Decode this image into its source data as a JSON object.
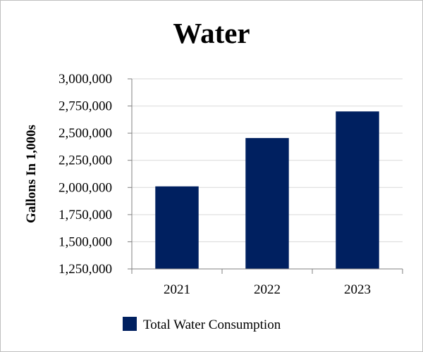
{
  "chart_data": {
    "type": "bar",
    "title": "Water",
    "xlabel": "",
    "ylabel": "Gallons In 1,000s",
    "categories": [
      "2021",
      "2022",
      "2023"
    ],
    "series": [
      {
        "name": "Total Water Consumption",
        "values": [
          2010000,
          2455000,
          2700000
        ]
      }
    ],
    "ylim": [
      1250000,
      3000000
    ],
    "yticks": [
      1250000,
      1500000,
      1750000,
      2000000,
      2250000,
      2500000,
      2750000,
      3000000
    ],
    "ytick_labels": [
      "1,250,000",
      "1,500,000",
      "1,750,000",
      "2,000,000",
      "2,250,000",
      "2,500,000",
      "2,750,000",
      "3,000,000"
    ],
    "grid": true,
    "legend_position": "bottom",
    "colors": {
      "bar": "#002060",
      "grid": "#d9d9d9",
      "axis": "#808080"
    }
  }
}
